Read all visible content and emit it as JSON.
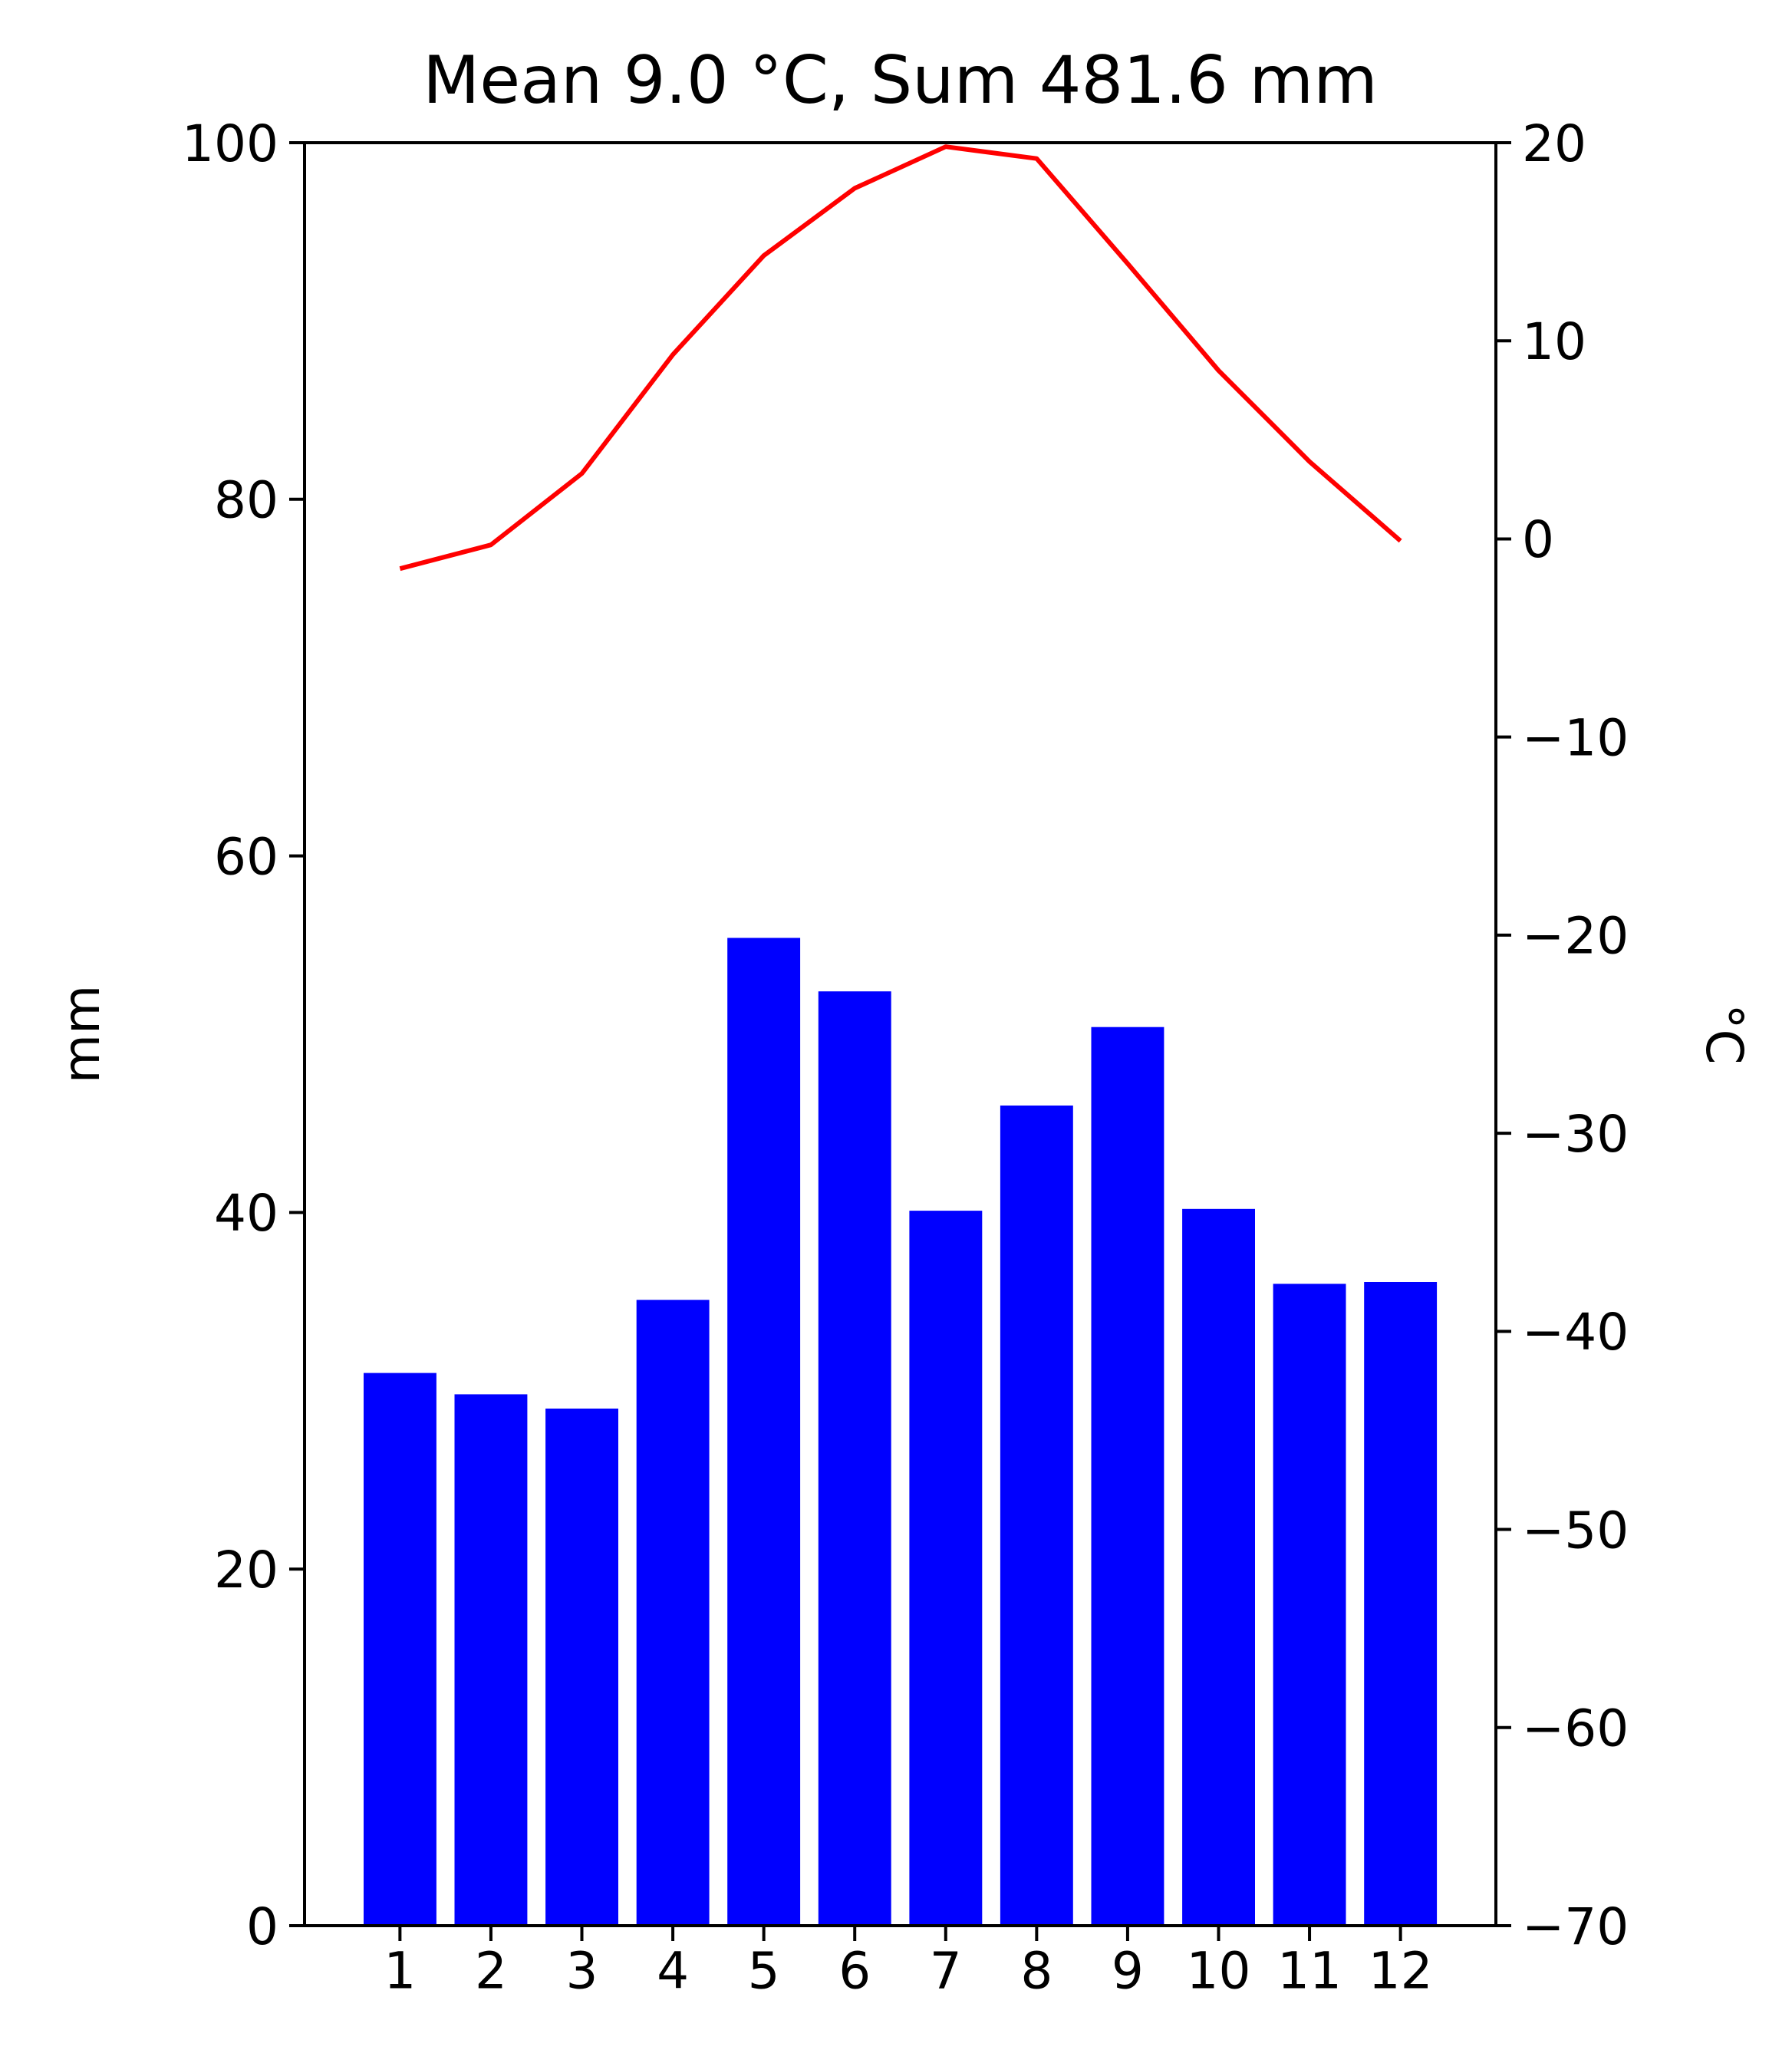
{
  "chart_data": {
    "type": "bar+line",
    "title": "Mean 9.0 °C, Sum  481.6 mm",
    "categories": [
      "1",
      "2",
      "3",
      "4",
      "5",
      "6",
      "7",
      "8",
      "9",
      "10",
      "11",
      "12"
    ],
    "series": [
      {
        "kind": "bar",
        "axis": "left",
        "color": "#0000ff",
        "values": [
          31.0,
          29.8,
          29.0,
          35.1,
          55.4,
          52.4,
          40.1,
          46.0,
          50.4,
          40.2,
          36.0,
          36.1
        ]
      },
      {
        "kind": "line",
        "axis": "right",
        "color": "#ff0000",
        "values": [
          -1.5,
          -0.3,
          3.3,
          9.3,
          14.3,
          17.7,
          19.8,
          19.2,
          13.9,
          8.5,
          3.9,
          -0.1
        ]
      }
    ],
    "left_axis": {
      "label": "mm",
      "ylim": [
        0,
        100
      ],
      "ticks": [
        0,
        20,
        40,
        60,
        80,
        100
      ]
    },
    "right_axis": {
      "label": "°C",
      "ylim": [
        -70,
        20
      ],
      "ticks": [
        -70,
        -60,
        -50,
        -40,
        -30,
        -20,
        -10,
        0,
        10,
        20
      ],
      "tick_labels": [
        "−70",
        "−60",
        "−50",
        "−40",
        "−30",
        "−20",
        "−10",
        "0",
        "10",
        "20"
      ]
    },
    "grid": false,
    "legend": "none"
  }
}
